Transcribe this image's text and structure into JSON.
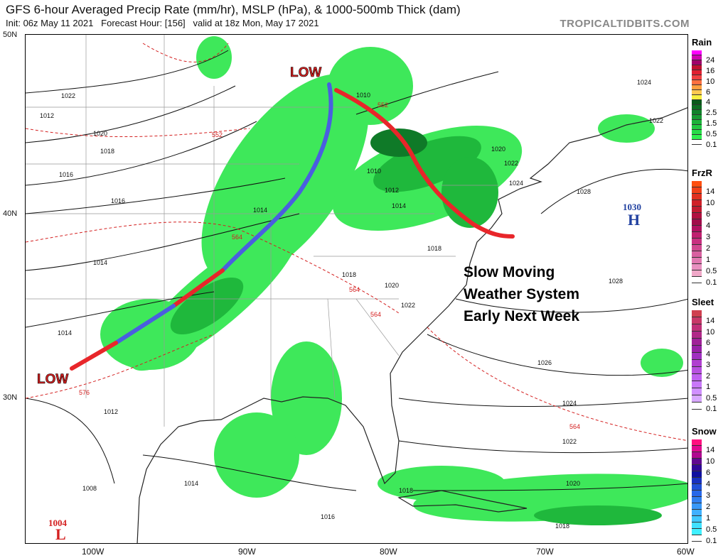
{
  "header": {
    "title": "GFS 6-hour Averaged Precip Rate (mm/hr), MSLP (hPa), & 1000-500mb Thick (dam)",
    "subtitle": "Init: 06z May 11 2021   Forecast Hour: [156]   valid at 18z Mon, May 17 2021",
    "brand": "TROPICALTIDBITS.COM"
  },
  "axes": {
    "lat": [
      "50N",
      "40N",
      "30N"
    ],
    "lon": [
      "100W",
      "90W",
      "80W",
      "70W",
      "60W"
    ]
  },
  "legends": [
    {
      "title": "Rain",
      "labels": [
        "24",
        "16",
        "10",
        "6",
        "4",
        "2.5",
        "1.5",
        "0.5",
        "0.1"
      ],
      "colors": [
        "#ff00ff",
        "#d000b0",
        "#a0006a",
        "#c01030",
        "#e02030",
        "#f04040",
        "#ff7040",
        "#ffa040",
        "#ffc850",
        "#f8f040",
        "#0a5a1a",
        "#0d6e22",
        "#10822a",
        "#169a32",
        "#1cb23a",
        "#22c842",
        "#28dc48",
        "#30f050",
        "#ffffff"
      ]
    },
    {
      "title": "FrzR",
      "labels": [
        "14",
        "10",
        "6",
        "4",
        "3",
        "2",
        "1",
        "0.5",
        "0.1"
      ],
      "colors": [
        "#ff5010",
        "#f04018",
        "#e03020",
        "#d02028",
        "#c01a30",
        "#b01040",
        "#a00c4a",
        "#b01060",
        "#c02070",
        "#c83080",
        "#d04890",
        "#d860a0",
        "#e078b0",
        "#e890c0",
        "#f0a8c8",
        "#ffffff"
      ]
    },
    {
      "title": "Sleet",
      "labels": [
        "14",
        "10",
        "6",
        "4",
        "3",
        "2",
        "1",
        "0.5",
        "0.1"
      ],
      "colors": [
        "#d04050",
        "#c83868",
        "#c03078",
        "#b02888",
        "#a02098",
        "#9820a8",
        "#a030c0",
        "#b040d0",
        "#b850e0",
        "#c060f0",
        "#c878f8",
        "#d090ff",
        "#d8a8ff",
        "#ffffff"
      ]
    },
    {
      "title": "Snow",
      "labels": [
        "14",
        "10",
        "6",
        "4",
        "3",
        "2",
        "1",
        "0.5",
        "0.1"
      ],
      "colors": [
        "#ff1080",
        "#e00890",
        "#b00890",
        "#600890",
        "#300898",
        "#1010a0",
        "#1830c0",
        "#2050d8",
        "#2868e8",
        "#3080f0",
        "#3898f8",
        "#40b0ff",
        "#40c8ff",
        "#40e0ff",
        "#40f0ff",
        "#ffffff"
      ]
    }
  ],
  "annotations": {
    "low_ne": "LOW",
    "low_sw": "LOW",
    "system_text": [
      "Slow Moving",
      "Weather System",
      "Early Next Week"
    ],
    "high_pressure": "1030",
    "high_symbol": "H",
    "low_pressure": "1004",
    "low_symbol": "L"
  },
  "isobar_labels": [
    "1022",
    "1020",
    "1018",
    "1016",
    "1016",
    "1014",
    "1014",
    "1014",
    "1012",
    "1008",
    "1010",
    "1010",
    "1012",
    "1014",
    "1018",
    "1018",
    "1020",
    "1022",
    "1020",
    "1022",
    "1024",
    "1028",
    "1028",
    "1026",
    "1024",
    "1022",
    "1020",
    "1018",
    "1018",
    "1016",
    "1014",
    "1012",
    "1022",
    "1024"
  ],
  "thickness_labels": [
    "552",
    "552",
    "564",
    "564",
    "564",
    "576",
    "564"
  ],
  "colors": {
    "precip_light": "#3ee85a",
    "precip_mid": "#1fb83c",
    "precip_dark": "#0f7a28",
    "warm_front": "#e8262a",
    "cold_front": "#4a5ee0",
    "thickness": "#d42020",
    "isobar": "#111111",
    "low_text": "#d42020",
    "high_text": "#2040a0"
  }
}
